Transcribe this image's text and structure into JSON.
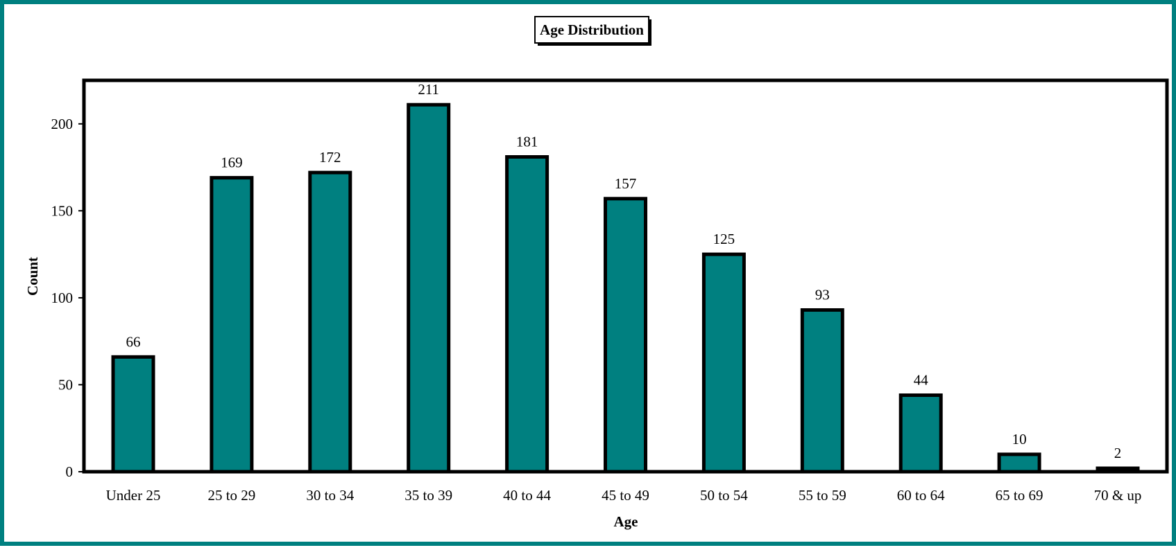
{
  "chart_data": {
    "type": "bar",
    "title": "Age Distribution",
    "xlabel": "Age",
    "ylabel": "Count",
    "categories": [
      "Under 25",
      "25 to 29",
      "30 to 34",
      "35 to 39",
      "40 to 44",
      "45 to 49",
      "50 to 54",
      "55 to 59",
      "60 to 64",
      "65 to 69",
      "70 & up"
    ],
    "values": [
      66,
      169,
      172,
      211,
      181,
      157,
      125,
      93,
      44,
      10,
      2
    ],
    "ylim": [
      0,
      225
    ],
    "yticks": [
      0,
      50,
      100,
      150,
      200
    ],
    "grid": false,
    "legend": "none",
    "bar_color": "#008080",
    "frame_color": "#008080"
  }
}
